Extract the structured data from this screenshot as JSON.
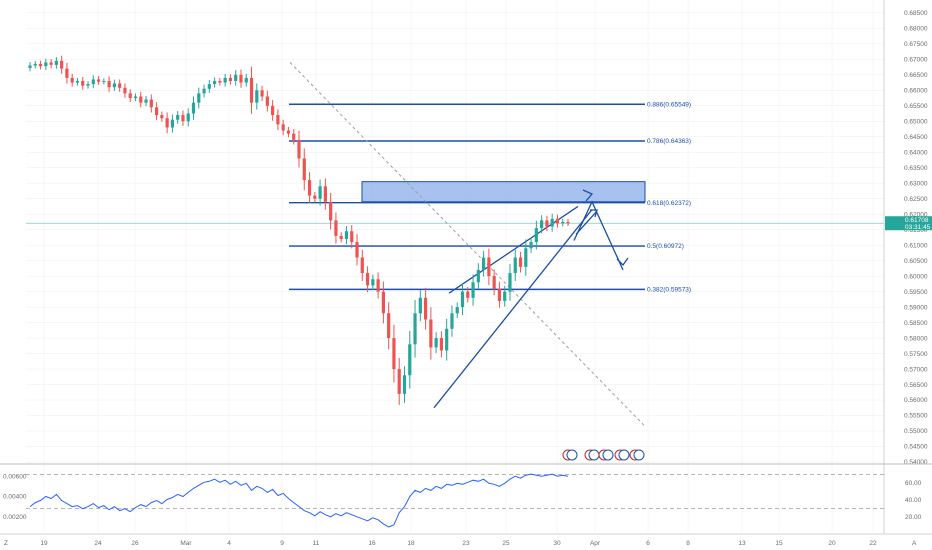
{
  "colors": {
    "up": "#26a69a",
    "down": "#ef5350",
    "fib_line": "#1c4ea8",
    "zone_fill": "#8aaee8",
    "price_badge": "#26a69a",
    "indicator_line": "#2962ff",
    "grid": "#eeeeee"
  },
  "chart_data": [
    {
      "type": "candlestick",
      "y_ticks": [
        "0.68500",
        "0.68000",
        "0.67500",
        "0.67000",
        "0.66500",
        "0.66000",
        "0.65500",
        "0.65000",
        "0.64500",
        "0.64000",
        "0.63500",
        "0.63000",
        "0.62500",
        "0.62000",
        "0.61500",
        "0.61000",
        "0.60500",
        "0.60000",
        "0.59500",
        "0.59000",
        "0.58500",
        "0.58000",
        "0.57500",
        "0.57000",
        "0.56500",
        "0.56000",
        "0.55500",
        "0.55000",
        "0.54500",
        "0.54000"
      ],
      "ylim": [
        0.54,
        0.6885
      ],
      "x_ticks": [
        "19",
        "24",
        "26",
        "Mar",
        "4",
        "9",
        "11",
        "16",
        "18",
        "23",
        "25",
        "30",
        "Apr",
        "6",
        "8",
        "13",
        "15",
        "20",
        "22"
      ],
      "current_price": "0.61708",
      "countdown": "03:31:45",
      "fib_levels": [
        {
          "label": "0.886(0.65549)",
          "value": 0.65549
        },
        {
          "label": "0.786(0.64363)",
          "value": 0.64363
        },
        {
          "label": "0.618(0.62372)",
          "value": 0.62372
        },
        {
          "label": "0.5(0.60972)",
          "value": 0.60972
        },
        {
          "label": "0.382(0.59573)",
          "value": 0.59573
        }
      ],
      "resistance_zone": [
        0.624,
        0.6305
      ],
      "candles_close": [
        0.668,
        0.6685,
        0.6678,
        0.669,
        0.6682,
        0.6695,
        0.667,
        0.664,
        0.6625,
        0.663,
        0.6615,
        0.662,
        0.6635,
        0.6628,
        0.663,
        0.661,
        0.6622,
        0.6608,
        0.659,
        0.6575,
        0.658,
        0.656,
        0.657,
        0.6545,
        0.652,
        0.651,
        0.648,
        0.6505,
        0.652,
        0.65,
        0.6525,
        0.656,
        0.659,
        0.6605,
        0.662,
        0.663,
        0.6625,
        0.664,
        0.663,
        0.665,
        0.6625,
        0.664,
        0.656,
        0.66,
        0.658,
        0.655,
        0.652,
        0.649,
        0.647,
        0.646,
        0.644,
        0.638,
        0.631,
        0.626,
        0.625,
        0.629,
        0.624,
        0.618,
        0.613,
        0.612,
        0.6145,
        0.611,
        0.606,
        0.601,
        0.597,
        0.599,
        0.595,
        0.588,
        0.58,
        0.57,
        0.562,
        0.568,
        0.578,
        0.588,
        0.593,
        0.586,
        0.577,
        0.58,
        0.576,
        0.583,
        0.588,
        0.59,
        0.595,
        0.593,
        0.598,
        0.602,
        0.606,
        0.6,
        0.596,
        0.592,
        0.595,
        0.601,
        0.606,
        0.603,
        0.609,
        0.611,
        0.6155,
        0.618,
        0.616,
        0.6185,
        0.617,
        0.6175,
        0.6171
      ]
    },
    {
      "type": "line",
      "y_ticks": [
        "0.00600",
        "0.00400",
        "0.00200"
      ],
      "right_ticks": [
        "60.00",
        "40.00",
        "20.00"
      ],
      "ylim": [
        0.0005,
        0.0072
      ],
      "levels": [
        70,
        30
      ],
      "values": [
        0.003,
        0.0034,
        0.0036,
        0.004,
        0.0038,
        0.0042,
        0.0036,
        0.0033,
        0.003,
        0.0031,
        0.0028,
        0.003,
        0.0033,
        0.0029,
        0.0031,
        0.0027,
        0.003,
        0.0026,
        0.0028,
        0.0025,
        0.0029,
        0.0032,
        0.003,
        0.0034,
        0.0036,
        0.0033,
        0.0037,
        0.0039,
        0.0042,
        0.004,
        0.0044,
        0.0048,
        0.0051,
        0.0054,
        0.0055,
        0.0057,
        0.0054,
        0.0056,
        0.0052,
        0.0055,
        0.0051,
        0.0053,
        0.0046,
        0.005,
        0.0048,
        0.0044,
        0.0047,
        0.0041,
        0.0043,
        0.0038,
        0.0034,
        0.003,
        0.0026,
        0.0024,
        0.0021,
        0.0025,
        0.0022,
        0.002,
        0.0023,
        0.0021,
        0.0024,
        0.0022,
        0.002,
        0.0018,
        0.0016,
        0.0019,
        0.0017,
        0.0013,
        0.001,
        0.0012,
        0.0024,
        0.003,
        0.004,
        0.0046,
        0.0044,
        0.0048,
        0.0046,
        0.005,
        0.0048,
        0.0052,
        0.0051,
        0.0053,
        0.0052,
        0.0054,
        0.0056,
        0.0055,
        0.0057,
        0.0053,
        0.0052,
        0.005,
        0.0053,
        0.0057,
        0.006,
        0.0058,
        0.0061,
        0.0062,
        0.0061,
        0.006,
        0.0061,
        0.0062,
        0.006,
        0.0061,
        0.006
      ]
    }
  ],
  "footer": {
    "left_label": "Z",
    "right_label": "A"
  }
}
